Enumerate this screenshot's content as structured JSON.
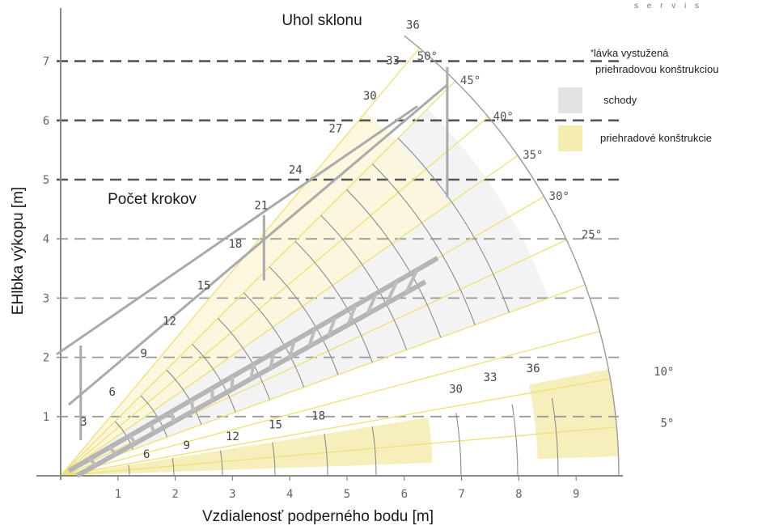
{
  "brand": "s e r v i s",
  "chart_data": {
    "type": "line",
    "title": "Uhol sklonu",
    "subtitle": "Počet krokov",
    "xlabel": "Vzdialenosť podperného bodu [m]",
    "ylabel": "EHlbka výkopu [m]",
    "xlim": [
      0,
      10
    ],
    "ylim": [
      0,
      7.7
    ],
    "x_ticks": [
      "1",
      "2",
      "3",
      "4",
      "5",
      "6",
      "7",
      "8",
      "9"
    ],
    "y_ticks": [
      "1",
      "2",
      "3",
      "4",
      "5",
      "6",
      "7"
    ],
    "angle_labels": [
      "5°",
      "10°",
      "25°",
      "30°",
      "35°",
      "40°",
      "45°",
      "50°"
    ],
    "step_labels_diagonal": [
      {
        "label": "3",
        "x": 0.4,
        "y": 0.85
      },
      {
        "label": "6",
        "x": 0.9,
        "y": 1.35
      },
      {
        "label": "9",
        "x": 1.45,
        "y": 2.0
      },
      {
        "label": "12",
        "x": 1.9,
        "y": 2.55
      },
      {
        "label": "15",
        "x": 2.5,
        "y": 3.15
      },
      {
        "label": "18",
        "x": 3.05,
        "y": 3.85
      },
      {
        "label": "21",
        "x": 3.5,
        "y": 4.5
      },
      {
        "label": "24",
        "x": 4.1,
        "y": 5.1
      },
      {
        "label": "27",
        "x": 4.8,
        "y": 5.8
      },
      {
        "label": "30",
        "x": 5.4,
        "y": 6.35
      },
      {
        "label": "33",
        "x": 5.8,
        "y": 6.95
      },
      {
        "label": "36",
        "x": 6.15,
        "y": 7.55
      }
    ],
    "step_labels_flat": [
      {
        "label": "6",
        "x": 1.5,
        "y": 0.3
      },
      {
        "label": "9",
        "x": 2.2,
        "y": 0.45
      },
      {
        "label": "12",
        "x": 3.0,
        "y": 0.6
      },
      {
        "label": "15",
        "x": 3.75,
        "y": 0.8
      },
      {
        "label": "18",
        "x": 4.5,
        "y": 0.95
      },
      {
        "label": "30",
        "x": 6.9,
        "y": 1.4
      },
      {
        "label": "33",
        "x": 7.5,
        "y": 1.6
      },
      {
        "label": "36",
        "x": 8.25,
        "y": 1.75
      }
    ],
    "grid": true
  },
  "legend": {
    "note_line1": "lávka vystužená",
    "note_line2": "priehradovou konštrukciou",
    "note_star": "*",
    "stairs_label": "schody",
    "truss_label": "priehradové konštrukcie",
    "stairs_color": "#e3e3e3",
    "truss_color": "#f5ecb0"
  }
}
